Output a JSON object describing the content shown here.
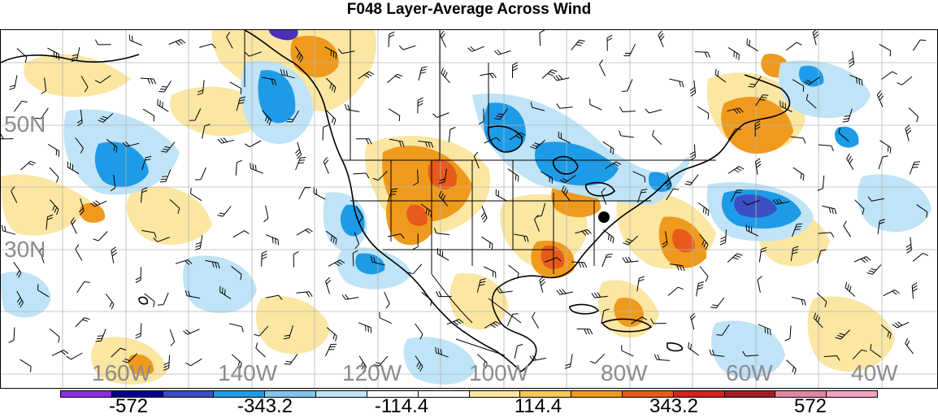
{
  "title": "F048 Layer-Average Across Wind",
  "lat_labels": [
    "50N",
    "30N"
  ],
  "lon_labels": [
    "160W",
    "140W",
    "120W",
    "100W",
    "80W",
    "60W",
    "40W"
  ],
  "colorbar": {
    "colors": [
      "#8b2be2",
      "#00008b",
      "#3a4fc4",
      "#1e9be6",
      "#7fc6ee",
      "#bfe3f7",
      "#ffffff",
      "#ffffff",
      "#fbe6a2",
      "#f7c95a",
      "#ef9a1c",
      "#e85a1a",
      "#d4221c",
      "#a51d24",
      "#e3879c",
      "#f4a0c0"
    ],
    "tick_labels": [
      "-572",
      "-343.2",
      "-114.4",
      "114.4",
      "343.2",
      "572"
    ]
  },
  "map_colors": {
    "light_blue": "#bfe3f7",
    "mid_blue": "#59bde8",
    "blue": "#1e9be6",
    "dark_blue": "#3a4fc4",
    "light_yellow": "#fbe6a2",
    "orange": "#ef9a1c",
    "dark_orange": "#e85a1a",
    "purple": "#4b2fb8"
  }
}
